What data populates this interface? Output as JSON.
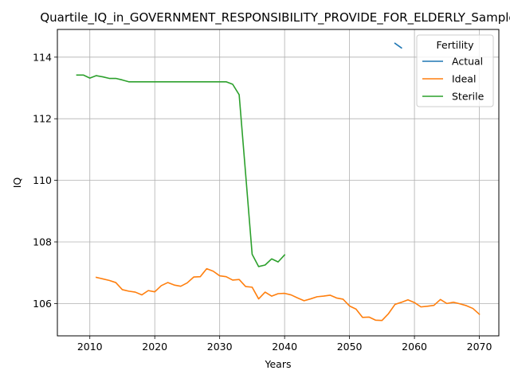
{
  "chart_data": {
    "type": "line",
    "title": "Quartile_IQ_in_GOVERNMENT_RESPONSIBILITY_PROVIDE_FOR_ELDERLY_Sample",
    "xlabel": "Years",
    "ylabel": "IQ",
    "xlim": [
      2005,
      2073
    ],
    "ylim": [
      104.95,
      114.9
    ],
    "xticks": [
      2010,
      2020,
      2030,
      2040,
      2050,
      2060,
      2070
    ],
    "yticks": [
      106,
      108,
      110,
      112,
      114
    ],
    "grid": true,
    "legend": {
      "title": "Fertility",
      "placement": "top-right"
    },
    "series": [
      {
        "name": "Actual",
        "color": "#1f77b4",
        "x": [
          2057,
          2058
        ],
        "y": [
          114.45,
          114.3
        ]
      },
      {
        "name": "Ideal",
        "color": "#ff7f0e",
        "x": [
          2011,
          2012,
          2013,
          2014,
          2015,
          2016,
          2017,
          2018,
          2019,
          2020,
          2021,
          2022,
          2023,
          2024,
          2025,
          2026,
          2027,
          2028,
          2029,
          2030,
          2031,
          2032,
          2033,
          2034,
          2035,
          2036,
          2037,
          2038,
          2039,
          2040,
          2041,
          2042,
          2043,
          2044,
          2045,
          2046,
          2047,
          2048,
          2049,
          2050,
          2051,
          2052,
          2053,
          2054,
          2055,
          2056,
          2057,
          2058,
          2059,
          2060,
          2061,
          2062,
          2063,
          2064,
          2065,
          2066,
          2067,
          2068,
          2069,
          2070
        ],
        "y": [
          106.85,
          106.8,
          106.75,
          106.68,
          106.45,
          106.4,
          106.37,
          106.28,
          106.42,
          106.38,
          106.58,
          106.68,
          106.6,
          106.56,
          106.67,
          106.86,
          106.87,
          107.13,
          107.05,
          106.9,
          106.87,
          106.76,
          106.78,
          106.55,
          106.53,
          106.15,
          106.37,
          106.24,
          106.32,
          106.33,
          106.28,
          106.18,
          106.09,
          106.15,
          106.22,
          106.24,
          106.27,
          106.18,
          106.14,
          105.92,
          105.82,
          105.55,
          105.56,
          105.46,
          105.45,
          105.67,
          105.97,
          106.04,
          106.12,
          106.03,
          105.89,
          105.91,
          105.94,
          106.13,
          106.0,
          106.04,
          105.99,
          105.93,
          105.84,
          105.65
        ]
      },
      {
        "name": "Sterile",
        "color": "#2ca02c",
        "x": [
          2008,
          2009,
          2010,
          2011,
          2012,
          2013,
          2014,
          2015,
          2016,
          2017,
          2018,
          2019,
          2020,
          2021,
          2022,
          2023,
          2024,
          2025,
          2026,
          2027,
          2028,
          2029,
          2030,
          2031,
          2032,
          2033,
          2034,
          2035,
          2036,
          2037,
          2038,
          2039,
          2040
        ],
        "y": [
          113.42,
          113.42,
          113.32,
          113.4,
          113.36,
          113.31,
          113.31,
          113.26,
          113.2,
          113.2,
          113.2,
          113.2,
          113.2,
          113.2,
          113.2,
          113.2,
          113.2,
          113.2,
          113.2,
          113.2,
          113.2,
          113.2,
          113.2,
          113.2,
          113.12,
          112.78,
          110.2,
          107.6,
          107.2,
          107.25,
          107.45,
          107.35,
          107.58
        ]
      }
    ]
  }
}
